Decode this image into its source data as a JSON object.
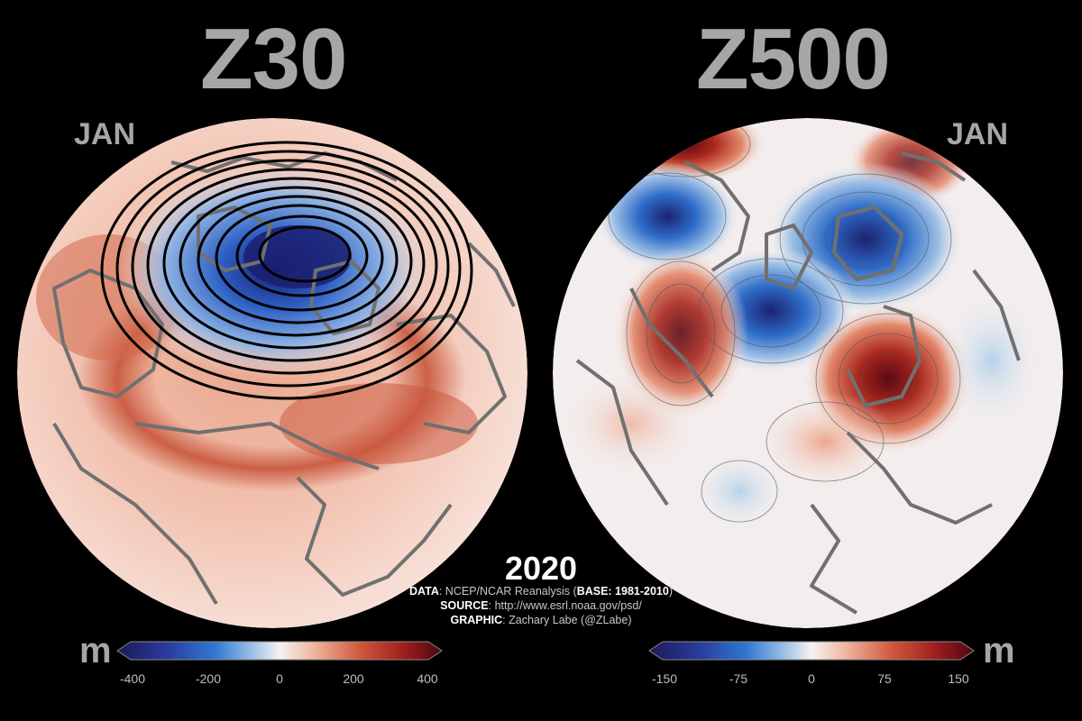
{
  "left_panel": {
    "title": "Z30",
    "month": "JAN",
    "unit": "m",
    "colorbar_ticks": [
      "-400",
      "-200",
      "0",
      "200",
      "400"
    ]
  },
  "right_panel": {
    "title": "Z500",
    "month": "JAN",
    "unit": "m",
    "colorbar_ticks": [
      "-150",
      "-75",
      "0",
      "75",
      "150"
    ]
  },
  "footer": {
    "year": "2020",
    "data_label": "DATA",
    "data_text": ": NCEP/NCAR Reanalysis (",
    "base_label": "BASE: 1981-2010",
    "data_close": ")",
    "source_label": "SOURCE",
    "source_text": ": http://www.esrl.noaa.gov/psd/",
    "graphic_label": "GRAPHIC",
    "graphic_text": ": Zachary Labe (@ZLabe)"
  },
  "colors": {
    "background": "#000000",
    "text_gray": "#a6a6a6",
    "deep_blue": "#1a1f6b",
    "blue": "#2f6fd0",
    "light": "#f4eeee",
    "red": "#cc4a2e",
    "dark_red": "#5c0a14",
    "coast": "#6e6e6e"
  }
}
